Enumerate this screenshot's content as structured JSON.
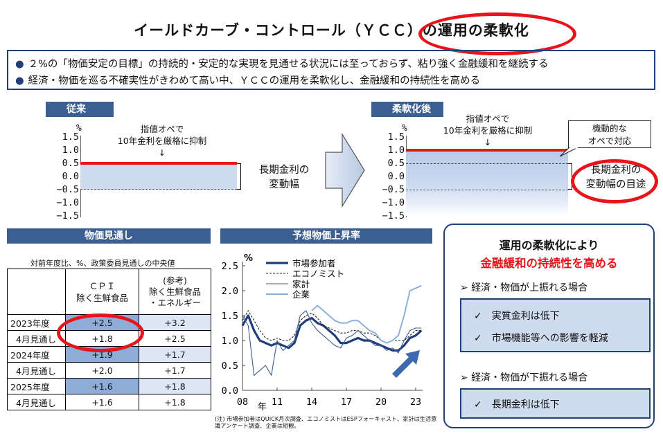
{
  "title": "イールドカーブ・コントロール（ＹＣＣ）の運用の柔軟化",
  "summary": [
    "２%の「物価安定の目標」の持続的・安定的な実現を見通せる状況には至っておらず、粘り強く金融緩和を継続する",
    "経済・物価を巡る不確実性がきわめて高い中、ＹＣＣの運用を柔軟化し、金融緩和の持続性を高める"
  ],
  "bullet_glyph": "●",
  "ycc_before": {
    "label": "従来",
    "unit": "%",
    "ticks": [
      "1.5",
      "1.0",
      "0.5",
      "0.0",
      "−0.5",
      "−1.0",
      "−1.5"
    ],
    "note": [
      "指値オペで",
      "10年金利を厳格に抑制",
      "↓"
    ],
    "range_label": [
      "長期金利の",
      "変動幅"
    ]
  },
  "ycc_after": {
    "label": "柔軟化後",
    "unit": "%",
    "ticks": [
      "1.5",
      "1.0",
      "0.5",
      "0.0",
      "−0.5",
      "−1.0",
      "−1.5"
    ],
    "note": [
      "指値オペで",
      "10年金利を厳格に抑制",
      "↓"
    ],
    "callout": [
      "機動的な",
      "オペで対応"
    ],
    "range_label": [
      "長期金利の",
      "変動幅の目途"
    ]
  },
  "price_outlook": {
    "label": "物価見通し",
    "caption": "対前年度比、%、政策委員見通しの中央値",
    "col1_header": [
      "ＣＰＩ",
      "除く生鮮食品"
    ],
    "col2_header": [
      "(参考)",
      "除く生鮮食品",
      "・エネルギー"
    ],
    "rows": [
      {
        "label": "2023年度",
        "cpi": "+2.5",
        "core": "+3.2",
        "indent": false
      },
      {
        "label": "4月見通し",
        "cpi": "+1.8",
        "core": "+2.5",
        "indent": true
      },
      {
        "label": "2024年度",
        "cpi": "+1.9",
        "core": "+1.7",
        "indent": false
      },
      {
        "label": "4月見通し",
        "cpi": "+2.0",
        "core": "+1.7",
        "indent": true
      },
      {
        "label": "2025年度",
        "cpi": "+1.6",
        "core": "+1.8",
        "indent": false
      },
      {
        "label": "4月見通し",
        "cpi": "+1.6",
        "core": "+1.8",
        "indent": true
      }
    ]
  },
  "chart_data": {
    "type": "line",
    "title": "予想物価上昇率",
    "ylabel": "%",
    "xlabel": "年",
    "x_ticks": [
      "08",
      "11",
      "14",
      "17",
      "20",
      "23"
    ],
    "y_ticks": [
      "2.5",
      "2.0",
      "1.5",
      "1.0",
      "0.5",
      "0.0"
    ],
    "xlim": [
      2008,
      2023.6
    ],
    "ylim": [
      0,
      2.5
    ],
    "x": [
      2008,
      2008.5,
      2009,
      2009.5,
      2010,
      2010.5,
      2011,
      2011.5,
      2012,
      2012.5,
      2013,
      2013.5,
      2014,
      2014.5,
      2015,
      2015.5,
      2016,
      2016.5,
      2017,
      2017.5,
      2018,
      2018.5,
      2019,
      2019.5,
      2020,
      2020.5,
      2021,
      2021.5,
      2022,
      2022.5,
      2023,
      2023.5
    ],
    "series": [
      {
        "name": "市場参加者",
        "values": [
          1.3,
          1.5,
          1.2,
          1.0,
          0.95,
          0.9,
          0.95,
          0.9,
          0.85,
          0.95,
          1.3,
          1.4,
          1.45,
          1.35,
          1.3,
          1.2,
          1.1,
          0.95,
          0.95,
          1.0,
          1.05,
          1.0,
          1.0,
          0.95,
          0.9,
          0.85,
          0.8,
          0.8,
          0.9,
          1.05,
          1.1,
          1.2
        ]
      },
      {
        "name": "エコノミスト",
        "values": [
          1.4,
          1.6,
          1.4,
          1.2,
          1.05,
          1.0,
          1.05,
          1.0,
          1.0,
          1.1,
          1.4,
          1.5,
          1.55,
          1.45,
          1.3,
          1.25,
          1.2,
          1.15,
          1.15,
          1.2,
          1.2,
          1.15,
          1.15,
          1.1,
          1.0,
          0.95,
          1.0,
          1.0,
          1.0,
          1.1,
          1.2,
          1.2
        ]
      },
      {
        "name": "家計",
        "values": [
          1.5,
          1.3,
          0.3,
          0.4,
          0.5,
          0.3,
          1.0,
          0.8,
          0.9,
          1.0,
          1.5,
          1.6,
          1.35,
          1.2,
          1.1,
          1.0,
          0.9,
          0.85,
          1.05,
          1.1,
          1.2,
          1.1,
          1.0,
          0.9,
          0.9,
          0.8,
          0.85,
          0.75,
          1.0,
          1.2,
          1.25,
          1.25
        ]
      },
      {
        "name": "企業",
        "values": [
          null,
          null,
          null,
          null,
          null,
          null,
          null,
          null,
          null,
          null,
          null,
          null,
          1.6,
          1.7,
          1.6,
          1.5,
          1.4,
          1.35,
          1.35,
          1.4,
          1.4,
          1.3,
          1.2,
          1.15,
          1.0,
          0.95,
          1.0,
          1.1,
          1.5,
          2.0,
          2.05,
          2.1
        ]
      }
    ],
    "note": "(注) 市場参加者はQUICK月次調査、エコノミストはESPフォーキャスト、家計は生活意識アンケート調査、企業は短観。"
  },
  "right_panel": {
    "heading1": "運用の柔軟化により",
    "heading2": "金融緩和の持続性を高める",
    "up_case": "経済・物価が上振れる場合",
    "up_items": [
      "実質金利は低下",
      "市場機能等への影響を軽減"
    ],
    "down_case": "経済・物価が下振れる場合",
    "down_items": [
      "長期金利は低下"
    ],
    "case_marker": "➢",
    "item_marker": "✓"
  },
  "colors": {
    "navy": "#21407a",
    "header_blue": "#3c5f91",
    "band_blue": "#cfdcf0",
    "red": "#e8141b"
  }
}
